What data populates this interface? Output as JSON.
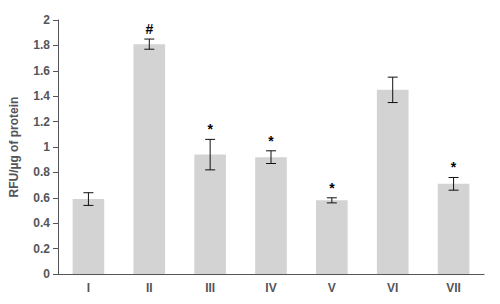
{
  "chart_data": {
    "type": "bar",
    "categories": [
      "I",
      "II",
      "III",
      "IV",
      "V",
      "VI",
      "VII"
    ],
    "values": [
      0.59,
      1.81,
      0.94,
      0.92,
      0.58,
      1.45,
      0.71
    ],
    "errors": [
      0.05,
      0.04,
      0.12,
      0.05,
      0.02,
      0.1,
      0.05
    ],
    "annotations": [
      null,
      "#",
      "*",
      "*",
      "*",
      null,
      "*"
    ],
    "color": "#d3d3d3",
    "ylabel": "RFU/µg of protein",
    "ylim": [
      0,
      2.0
    ],
    "yticks": [
      0,
      0.2,
      0.4,
      0.6,
      0.8,
      1,
      1.2,
      1.4,
      1.6,
      1.8,
      2
    ],
    "grid": false
  }
}
